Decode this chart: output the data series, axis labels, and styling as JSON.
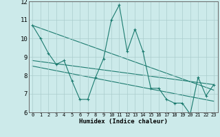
{
  "xlabel": "Humidex (Indice chaleur)",
  "bg_color": "#cceaea",
  "grid_color": "#b0d8d8",
  "line_color": "#1a7a6e",
  "xlim": [
    -0.5,
    23.5
  ],
  "ylim": [
    6,
    12
  ],
  "xticks": [
    0,
    1,
    2,
    3,
    4,
    5,
    6,
    7,
    8,
    9,
    10,
    11,
    12,
    13,
    14,
    15,
    16,
    17,
    18,
    19,
    20,
    21,
    22,
    23
  ],
  "yticks": [
    6,
    7,
    8,
    9,
    10,
    11,
    12
  ],
  "series1_x": [
    0,
    1,
    2,
    3,
    4,
    5,
    6,
    7,
    8,
    9,
    10,
    11,
    12,
    13,
    14,
    15,
    16,
    17,
    18,
    19,
    20,
    21,
    22,
    23
  ],
  "series1_y": [
    10.7,
    10.0,
    9.2,
    8.6,
    8.8,
    7.7,
    6.7,
    6.7,
    7.9,
    8.9,
    11.0,
    11.8,
    9.3,
    10.5,
    9.3,
    7.3,
    7.3,
    6.7,
    6.5,
    6.5,
    5.9,
    7.9,
    6.9,
    7.5
  ],
  "series2_x": [
    0,
    23
  ],
  "series2_y": [
    10.7,
    7.2
  ],
  "series3_x": [
    0,
    23
  ],
  "series3_y": [
    8.8,
    7.5
  ],
  "series4_x": [
    0,
    23
  ],
  "series4_y": [
    8.5,
    6.6
  ]
}
